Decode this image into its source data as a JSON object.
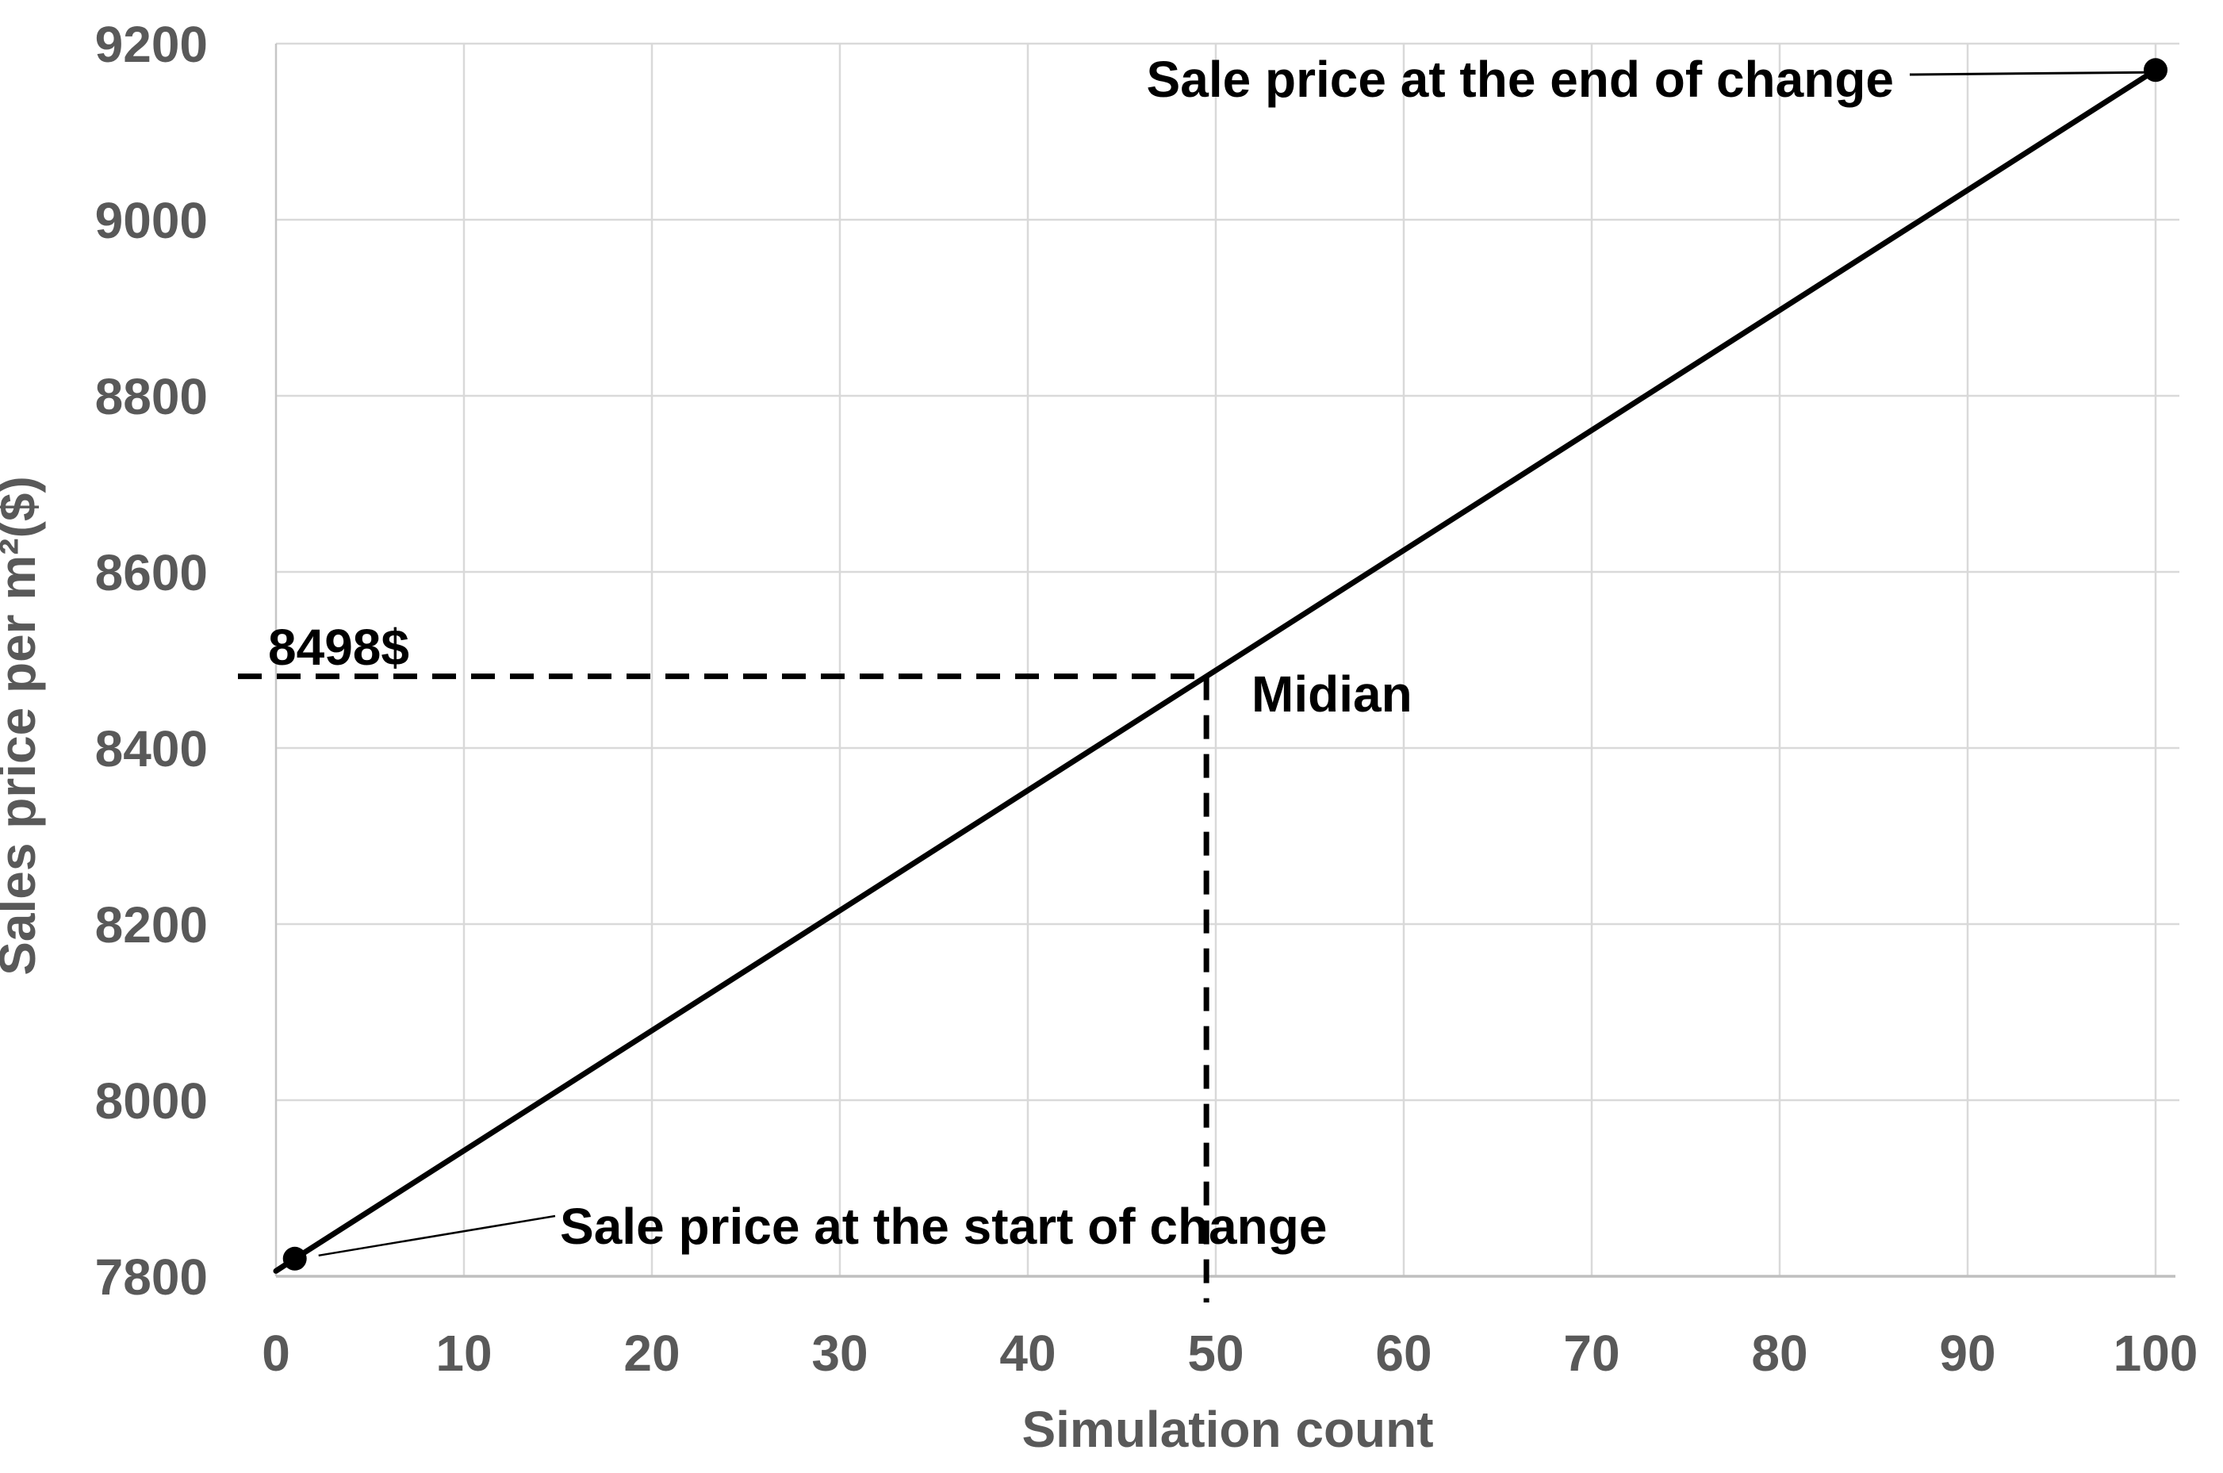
{
  "page": {
    "background_color": "#ffffff"
  },
  "colors": {
    "series_line": "#000000",
    "marker": "#000000",
    "annotation_text": "#000000",
    "tick_text": "#595959",
    "gridline": "#d9d9d9",
    "axis_line": "#bfbfbf",
    "dashed_line": "#000000",
    "leader_line": "#000000"
  },
  "chart_data": {
    "type": "line",
    "title": "",
    "xlabel": "Simulation count",
    "ylabel": "Sales price per m²($)",
    "x_ticks": [
      0,
      10,
      20,
      30,
      40,
      50,
      60,
      70,
      80,
      90,
      100
    ],
    "y_ticks": [
      7800,
      8000,
      8200,
      8400,
      8600,
      8800,
      9000,
      9200
    ],
    "xlim": [
      0,
      101.3
    ],
    "ylim": [
      7800,
      9200
    ],
    "grid": true,
    "legend": "none",
    "series": [
      {
        "name": "sale-price-per-m2",
        "points": [
          {
            "x": 0,
            "y": 7806
          },
          {
            "x": 1,
            "y": 7820
          },
          {
            "x": 100,
            "y": 9170
          }
        ]
      }
    ],
    "markers": [
      {
        "x": 1,
        "y": 7820,
        "meaning": "Sale price at the start of change"
      },
      {
        "x": 100,
        "y": 9170,
        "meaning": "Sale price at the end of change"
      }
    ],
    "median": {
      "x": 49.5,
      "label": "Midian",
      "value_label": "8498$"
    },
    "annotations": {
      "end": "Sale price at the end of change",
      "start": "Sale price at the start of change"
    }
  }
}
